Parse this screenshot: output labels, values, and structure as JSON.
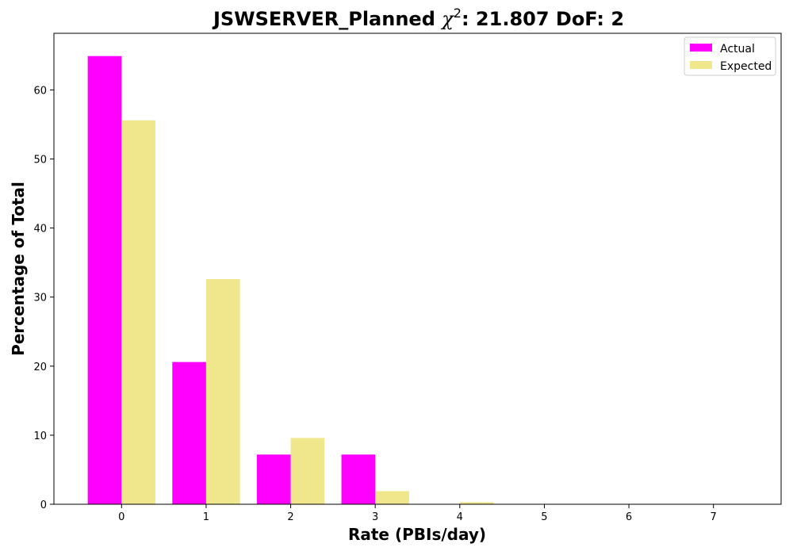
{
  "chart_data": {
    "type": "bar",
    "title_prefix": "JSWSERVER_Planned ",
    "title_symbol": "χ",
    "title_superscript": "2",
    "title_suffix": ": 21.807 DoF: 2",
    "xlabel": "Rate (PBIs/day)",
    "ylabel": "Percentage of Total",
    "categories": [
      "0",
      "1",
      "2",
      "3",
      "4",
      "5",
      "6",
      "7"
    ],
    "series": [
      {
        "name": "Actual",
        "color": "#ff00ff",
        "values": [
          64.9,
          20.6,
          7.2,
          7.2,
          0,
          0,
          0,
          0
        ]
      },
      {
        "name": "Expected",
        "color": "#f0e68c",
        "values": [
          55.6,
          32.6,
          9.6,
          1.9,
          0.3,
          0.05,
          0,
          0
        ]
      }
    ],
    "xlim": [
      -0.8,
      7.8
    ],
    "ylim": [
      0,
      68.2
    ],
    "yticks": [
      0,
      10,
      20,
      30,
      40,
      50,
      60
    ],
    "legend_position": "top-right",
    "grid": false
  }
}
